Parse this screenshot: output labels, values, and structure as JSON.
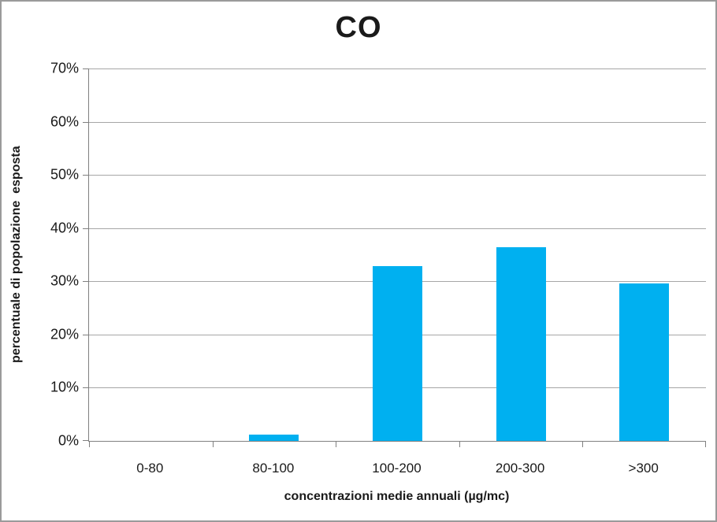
{
  "title": "CO",
  "chart_data": {
    "type": "bar",
    "title": "CO",
    "categories": [
      "0-80",
      "80-100",
      "100-200",
      "200-300",
      ">300"
    ],
    "values": [
      0,
      1.2,
      32.8,
      36.4,
      29.6
    ],
    "xlabel": "concentrazioni medie annuali (µg/mc)",
    "ylabel": "percentuale di popolazione  esposta",
    "ylim": [
      0,
      70
    ],
    "ytick_step": 10,
    "ytick_labels": [
      "0%",
      "10%",
      "20%",
      "30%",
      "40%",
      "50%",
      "60%",
      "70%"
    ],
    "grid": true,
    "legend": "none",
    "bar_color": "#00b0f0"
  },
  "colors": {
    "bar": "#00b0f0",
    "gridline": "#a6a6a6",
    "axis": "#808080",
    "text": "#1a1a1a",
    "frame_border": "#9a9a9a",
    "background": "#ffffff"
  }
}
